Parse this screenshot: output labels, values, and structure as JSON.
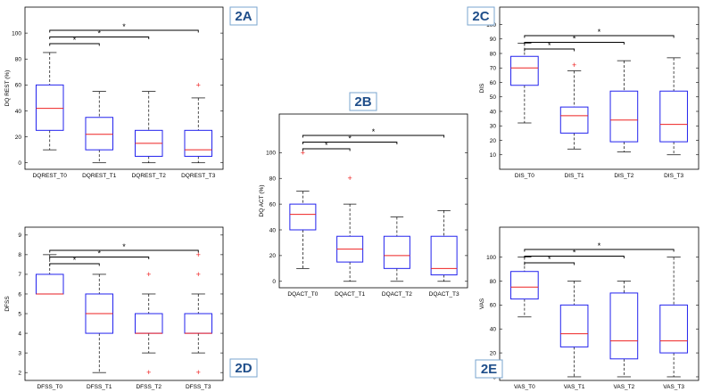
{
  "chart_data": [
    {
      "panel": "2A",
      "type": "box",
      "ylabel": "DQ REST (%)",
      "ylim": [
        -5,
        120
      ],
      "yticks": [
        0,
        20,
        40,
        60,
        80,
        100
      ],
      "categories": [
        "DQREST_T0",
        "DQREST_T1",
        "DQREST_T2",
        "DQREST_T3"
      ],
      "boxes": [
        {
          "min": 10,
          "q1": 25,
          "median": 42,
          "q3": 60,
          "max": 85,
          "outliers": []
        },
        {
          "min": 0,
          "q1": 10,
          "median": 22,
          "q3": 35,
          "max": 55,
          "outliers": []
        },
        {
          "min": 0,
          "q1": 5,
          "median": 15,
          "q3": 25,
          "max": 55,
          "outliers": []
        },
        {
          "min": 0,
          "q1": 5,
          "median": 10,
          "q3": 25,
          "max": 50,
          "outliers": [
            60
          ]
        }
      ],
      "significance": [
        {
          "from": 0,
          "to": 1,
          "label": "*"
        },
        {
          "from": 0,
          "to": 2,
          "label": "*"
        },
        {
          "from": 0,
          "to": 3,
          "label": "*"
        }
      ]
    },
    {
      "panel": "2B",
      "type": "box",
      "ylabel": "DQ ACT (%)",
      "ylim": [
        -5,
        130
      ],
      "yticks": [
        0,
        20,
        40,
        60,
        80,
        100
      ],
      "categories": [
        "DQACT_T0",
        "DQACT_T1",
        "DQACT_T2",
        "DQACT_T3"
      ],
      "boxes": [
        {
          "min": 10,
          "q1": 40,
          "median": 52,
          "q3": 60,
          "max": 70,
          "outliers": [
            100
          ]
        },
        {
          "min": 0,
          "q1": 15,
          "median": 25,
          "q3": 35,
          "max": 60,
          "outliers": [
            80
          ]
        },
        {
          "min": 0,
          "q1": 10,
          "median": 20,
          "q3": 35,
          "max": 50,
          "outliers": []
        },
        {
          "min": 0,
          "q1": 5,
          "median": 10,
          "q3": 35,
          "max": 55,
          "outliers": []
        }
      ],
      "significance": [
        {
          "from": 0,
          "to": 1,
          "label": "*"
        },
        {
          "from": 0,
          "to": 2,
          "label": "*"
        },
        {
          "from": 0,
          "to": 3,
          "label": "*"
        }
      ]
    },
    {
      "panel": "2C",
      "type": "box",
      "ylabel": "DIS",
      "ylim": [
        0,
        112
      ],
      "yticks": [
        10,
        20,
        30,
        40,
        50,
        60,
        70,
        80,
        90,
        100
      ],
      "categories": [
        "DIS_T0",
        "DIS_T1",
        "DIS_T2",
        "DIS_T3"
      ],
      "boxes": [
        {
          "min": 32,
          "q1": 58,
          "median": 70,
          "q3": 78,
          "max": 87,
          "outliers": []
        },
        {
          "min": 14,
          "q1": 25,
          "median": 37,
          "q3": 43,
          "max": 68,
          "outliers": [
            72
          ]
        },
        {
          "min": 12,
          "q1": 19,
          "median": 34,
          "q3": 54,
          "max": 75,
          "outliers": []
        },
        {
          "min": 10,
          "q1": 19,
          "median": 31,
          "q3": 54,
          "max": 77,
          "outliers": []
        }
      ],
      "significance": [
        {
          "from": 0,
          "to": 1,
          "label": "*"
        },
        {
          "from": 0,
          "to": 2,
          "label": "*"
        },
        {
          "from": 0,
          "to": 3,
          "label": "*"
        }
      ]
    },
    {
      "panel": "2D",
      "type": "box",
      "ylabel": "DFSS",
      "ylim": [
        1.6,
        9.4
      ],
      "yticks": [
        2,
        3,
        4,
        5,
        6,
        7,
        8,
        9
      ],
      "categories": [
        "DFSS_T0",
        "DFSS_T1",
        "DFSS_T2",
        "DFSS_T3"
      ],
      "boxes": [
        {
          "min": 6,
          "q1": 6,
          "median": 6,
          "q3": 7,
          "max": 8,
          "outliers": []
        },
        {
          "min": 2,
          "q1": 4,
          "median": 5,
          "q3": 6,
          "max": 7,
          "outliers": []
        },
        {
          "min": 3,
          "q1": 4,
          "median": 4,
          "q3": 5,
          "max": 6,
          "outliers": [
            7,
            2
          ]
        },
        {
          "min": 3,
          "q1": 4,
          "median": 4,
          "q3": 5,
          "max": 6,
          "outliers": [
            8,
            7,
            2
          ]
        }
      ],
      "significance": [
        {
          "from": 0,
          "to": 1,
          "label": "*"
        },
        {
          "from": 0,
          "to": 2,
          "label": "*"
        },
        {
          "from": 0,
          "to": 3,
          "label": "*"
        }
      ]
    },
    {
      "panel": "2E",
      "type": "box",
      "ylabel": "VAS",
      "ylim": [
        -3,
        125
      ],
      "yticks": [
        0,
        20,
        40,
        60,
        80,
        100
      ],
      "categories": [
        "VAS_T0",
        "VAS_T1",
        "VAS_T2",
        "VAS_T3"
      ],
      "boxes": [
        {
          "min": 50,
          "q1": 65,
          "median": 75,
          "q3": 88,
          "max": 100,
          "outliers": []
        },
        {
          "min": 0,
          "q1": 25,
          "median": 36,
          "q3": 60,
          "max": 80,
          "outliers": []
        },
        {
          "min": 0,
          "q1": 15,
          "median": 30,
          "q3": 70,
          "max": 80,
          "outliers": []
        },
        {
          "min": 0,
          "q1": 20,
          "median": 30,
          "q3": 60,
          "max": 100,
          "outliers": []
        }
      ],
      "significance": [
        {
          "from": 0,
          "to": 1,
          "label": "*"
        },
        {
          "from": 0,
          "to": 2,
          "label": "*"
        },
        {
          "from": 0,
          "to": 3,
          "label": "*"
        }
      ]
    }
  ]
}
